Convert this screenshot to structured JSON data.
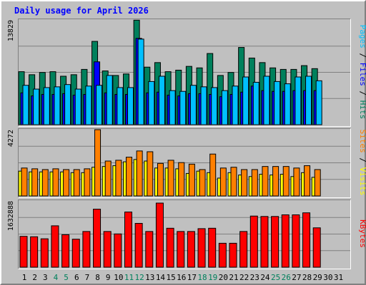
{
  "title": "Daily usage for April 2026",
  "colors": {
    "background": "#c0c0c0",
    "title": "#0000ff",
    "hits": "#00805c",
    "files": "#0000ff",
    "pages": "#00c0ff",
    "visits": "#ffff00",
    "sites": "#ff8000",
    "kbytes": "#ff0000",
    "day_weekday": "#000000",
    "day_weekend": "#00805c"
  },
  "chart_data": [
    {
      "type": "bar",
      "panel": "hits-files-pages",
      "ymax": 13829,
      "ymax_label": "13829",
      "side_labels": [
        "Pages",
        "Files",
        "Hits"
      ],
      "categories": [
        "1",
        "2",
        "3",
        "4",
        "5",
        "6",
        "7",
        "8",
        "9",
        "10",
        "11",
        "12",
        "13",
        "14",
        "15",
        "16",
        "17",
        "18",
        "19",
        "20",
        "21",
        "22",
        "23",
        "24",
        "25",
        "26",
        "27",
        "28",
        "29",
        "30",
        "31"
      ],
      "series": [
        {
          "name": "Hits",
          "values": [
            7000,
            6600,
            6900,
            7000,
            6400,
            6600,
            7300,
            11000,
            7100,
            6500,
            6700,
            13800,
            7600,
            8200,
            7000,
            7200,
            7700,
            7500,
            9400,
            6500,
            6900,
            10200,
            8800,
            8200,
            7500,
            7300,
            7300,
            7800,
            7400,
            null,
            null
          ]
        },
        {
          "name": "Files",
          "values": [
            4200,
            3800,
            4000,
            4000,
            4100,
            3900,
            4000,
            8300,
            4200,
            4000,
            4000,
            11400,
            4200,
            4300,
            3900,
            3800,
            4100,
            4100,
            4000,
            3700,
            4000,
            4300,
            5100,
            4500,
            4400,
            4400,
            4500,
            4500,
            4500,
            null,
            null
          ]
        },
        {
          "name": "Pages",
          "values": [
            5200,
            4700,
            4900,
            5000,
            5300,
            4700,
            5100,
            5200,
            6500,
            4900,
            4900,
            11300,
            5700,
            6400,
            4500,
            4400,
            5200,
            5000,
            4900,
            4500,
            5100,
            6300,
            5600,
            6400,
            5700,
            5400,
            6300,
            6400,
            5800,
            null,
            null
          ]
        }
      ]
    },
    {
      "type": "bar",
      "panel": "visits-sites",
      "ymax": 4272,
      "ymax_label": "4272",
      "side_labels": [
        "Sites",
        "Visits"
      ],
      "series": [
        {
          "name": "Visits",
          "values": [
            1600,
            1550,
            1550,
            1550,
            1550,
            1500,
            1500,
            1850,
            1900,
            1950,
            2200,
            2350,
            2250,
            1800,
            1800,
            1750,
            1450,
            1600,
            1500,
            1150,
            1500,
            1350,
            1250,
            1400,
            1350,
            1400,
            1250,
            1500,
            1200,
            null,
            null
          ]
        },
        {
          "name": "Sites",
          "values": [
            1800,
            1750,
            1700,
            1750,
            1700,
            1700,
            1750,
            4272,
            2250,
            2300,
            2500,
            2900,
            2850,
            2100,
            2300,
            2150,
            2050,
            1700,
            2700,
            1800,
            1850,
            1700,
            1700,
            1900,
            1900,
            1900,
            1800,
            1950,
            1700,
            null,
            null
          ]
        }
      ]
    },
    {
      "type": "bar",
      "panel": "kbytes",
      "ymax": 1632888,
      "ymax_label": "1632888",
      "side_labels": [
        "KBytes"
      ],
      "series": [
        {
          "name": "KBytes",
          "values": [
            760000,
            750000,
            700000,
            1020000,
            800000,
            690000,
            880000,
            1430000,
            880000,
            820000,
            1360000,
            1080000,
            880000,
            1580000,
            960000,
            880000,
            880000,
            950000,
            960000,
            590000,
            590000,
            880000,
            1260000,
            1250000,
            1250000,
            1290000,
            1290000,
            1340000,
            970000,
            null,
            null
          ]
        }
      ]
    }
  ]
}
